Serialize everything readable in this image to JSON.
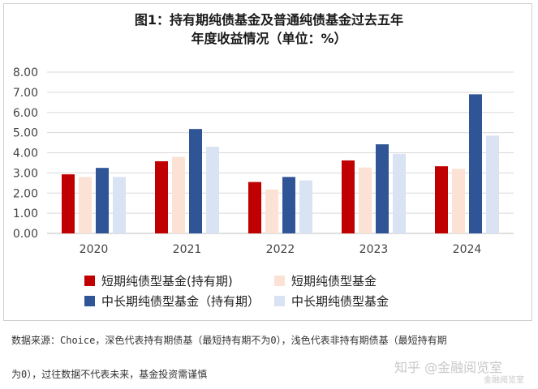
{
  "title_line1": "图1：持有期纯债基金及普通纯债基金过去五年",
  "title_line2": "年度收益情况（单位：%）",
  "colors": [
    "#c00000",
    "#fbe2d5",
    "#2f5597",
    "#dae3f3"
  ],
  "legend": [
    "短期纯债型基金(持有期)",
    "短期纯债型基金",
    "中长期纯债型基金（持有期）",
    "中长期纯债型基金"
  ],
  "footnote_line1": "数据来源：Choice，深色代表持有期债基（最短持有期不为0），浅色代表非持有期债基（最短持有期",
  "footnote_line2": "为0），过往数据不代表未来，基金投资需谨慎",
  "watermark1": "知乎 @金融阅览室",
  "watermark2": "金融阅览室",
  "chart_data": {
    "type": "bar",
    "categories": [
      "2020",
      "2021",
      "2022",
      "2023",
      "2024"
    ],
    "series": [
      {
        "name": "短期纯债型基金(持有期)",
        "values": [
          2.93,
          3.58,
          2.55,
          3.62,
          3.33
        ]
      },
      {
        "name": "短期纯债型基金",
        "values": [
          2.8,
          3.8,
          2.18,
          3.27,
          3.2
        ]
      },
      {
        "name": "中长期纯债型基金（持有期）",
        "values": [
          3.25,
          5.18,
          2.8,
          4.42,
          6.9
        ]
      },
      {
        "name": "中长期纯债型基金",
        "values": [
          2.8,
          4.3,
          2.63,
          3.95,
          4.85
        ]
      }
    ],
    "ylim": [
      0,
      8
    ],
    "yticks": [
      "0.00",
      "1.00",
      "2.00",
      "3.00",
      "4.00",
      "5.00",
      "6.00",
      "7.00",
      "8.00"
    ],
    "grid": true,
    "legend_position": "bottom"
  }
}
